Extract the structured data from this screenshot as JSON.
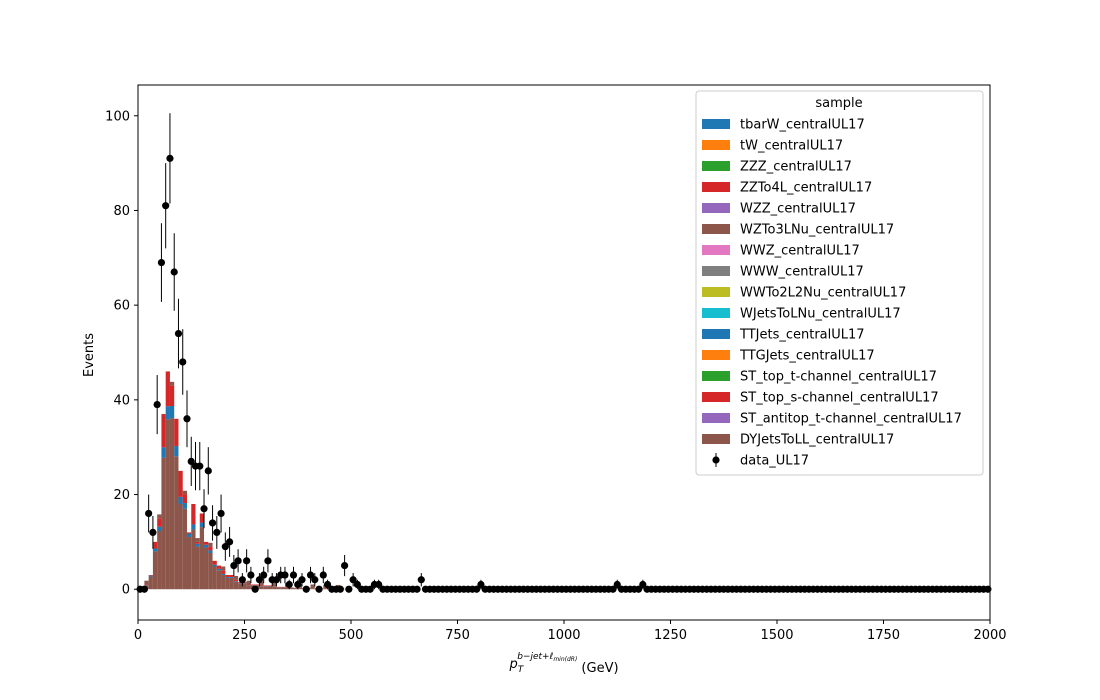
{
  "chart_data": {
    "type": "bar",
    "stacked": true,
    "xlabel_base": "p",
    "xlabel_sub": "T",
    "xlabel_sup": "b−jet+ℓ",
    "xlabel_sup_sub": "min(dR)",
    "xlabel_unit": " (GeV)",
    "ylabel": "Events",
    "xlim": [
      0,
      2000
    ],
    "ylim": [
      -6.5,
      106.5
    ],
    "x_ticks": [
      0,
      250,
      500,
      750,
      1000,
      1250,
      1500,
      1750,
      2000
    ],
    "y_ticks": [
      0,
      20,
      40,
      60,
      80,
      100
    ],
    "grid": false,
    "bin_width": 10,
    "legend": {
      "title": "sample",
      "placement": "top-right",
      "entries": [
        {
          "name": "tbarW_centralUL17",
          "color": "#1f77b4"
        },
        {
          "name": "tW_centralUL17",
          "color": "#ff7f0e"
        },
        {
          "name": "ZZZ_centralUL17",
          "color": "#2ca02c"
        },
        {
          "name": "ZZTo4L_centralUL17",
          "color": "#d62728"
        },
        {
          "name": "WZZ_centralUL17",
          "color": "#9467bd"
        },
        {
          "name": "WZTo3LNu_centralUL17",
          "color": "#8c564b"
        },
        {
          "name": "WWZ_centralUL17",
          "color": "#e377c2"
        },
        {
          "name": "WWW_centralUL17",
          "color": "#7f7f7f"
        },
        {
          "name": "WWTo2L2Nu_centralUL17",
          "color": "#bcbd22"
        },
        {
          "name": "WJetsToLNu_centralUL17",
          "color": "#17becf"
        },
        {
          "name": "TTJets_centralUL17",
          "color": "#1f77b4"
        },
        {
          "name": "TTGJets_centralUL17",
          "color": "#ff7f0e"
        },
        {
          "name": "ST_top_t-channel_centralUL17",
          "color": "#2ca02c"
        },
        {
          "name": "ST_top_s-channel_centralUL17",
          "color": "#d62728"
        },
        {
          "name": "ST_antitop_t-channel_centralUL17",
          "color": "#9467bd"
        },
        {
          "name": "DYJetsToLL_centralUL17",
          "color": "#8c564b"
        },
        {
          "name": "data_UL17",
          "color": "#000000",
          "marker": "errorbar"
        }
      ]
    },
    "mc_total": {
      "x": [
        10,
        20,
        30,
        40,
        50,
        60,
        70,
        80,
        90,
        100,
        110,
        120,
        130,
        140,
        150,
        160,
        170,
        180,
        190,
        200,
        210,
        220,
        230,
        240,
        250,
        260,
        270,
        280,
        290,
        300,
        310,
        320,
        330,
        340,
        350,
        360,
        370,
        380,
        390,
        400,
        410,
        420,
        430,
        440,
        450,
        460,
        470,
        480,
        490
      ],
      "total": [
        0,
        1,
        3,
        10,
        15,
        37,
        46,
        43,
        36,
        25,
        20,
        12,
        18,
        10,
        16,
        10,
        9,
        6,
        5,
        4,
        3,
        3,
        2,
        1.5,
        1.5,
        1,
        1,
        1,
        0.8,
        0.8,
        0.8,
        0.6,
        0.5,
        0.5,
        0.5,
        0.4,
        0.3,
        0.3,
        0.2,
        0.3,
        0.2,
        0.2,
        0.15,
        0.15,
        0.1,
        0.1,
        0.1,
        0.1,
        0.05
      ],
      "dy_share": [
        0,
        0.85,
        0.9,
        0.8,
        0.82,
        0.75,
        0.78,
        0.84,
        0.78,
        0.72,
        0.85,
        0.92,
        0.7,
        0.9,
        0.82,
        0.88,
        0.85,
        0.8,
        0.8,
        0.75,
        0.8,
        0.8,
        0.8,
        0.8,
        0.8,
        0.8,
        0.8,
        0.8,
        0.8,
        0.8,
        0.8,
        0.8,
        0.8,
        0.8,
        0.8,
        0.8,
        0.8,
        0.8,
        0.8,
        0.8,
        0.8,
        0.8,
        0.8,
        0.8,
        0.8,
        0.8,
        0.8,
        0.8,
        0.8
      ]
    },
    "data": {
      "x": [
        15,
        25,
        35,
        45,
        55,
        65,
        75,
        85,
        95,
        105,
        115,
        125,
        135,
        145,
        155,
        165,
        175,
        185,
        195,
        205,
        215,
        225,
        235,
        245,
        255,
        265,
        275,
        285,
        295,
        305,
        315,
        325,
        335,
        345,
        355,
        365,
        375,
        385,
        395,
        405,
        415,
        425,
        435,
        445,
        455,
        465,
        475,
        485,
        495,
        505,
        515,
        525,
        535,
        545,
        555,
        565,
        665,
        805,
        1125,
        1185
      ],
      "y": [
        0,
        16,
        12,
        39,
        69,
        81,
        91,
        67,
        54,
        48,
        36,
        27,
        26,
        26,
        17,
        25,
        14,
        12,
        16,
        9,
        10,
        5,
        6,
        2,
        6,
        3,
        0,
        2,
        3,
        6,
        2,
        2,
        3,
        3,
        1,
        3,
        1,
        2,
        0,
        3,
        2,
        0,
        3,
        1,
        0,
        0,
        0,
        5,
        0,
        2,
        1,
        0,
        0,
        0,
        1,
        1,
        2,
        1,
        1,
        1
      ],
      "zero_range": [
        5,
        1995
      ]
    }
  }
}
